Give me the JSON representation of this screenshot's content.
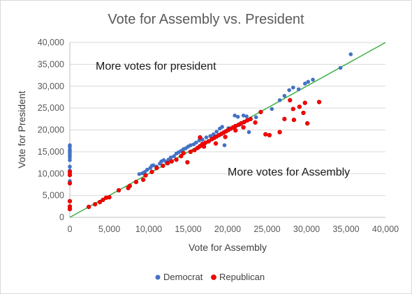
{
  "chart_data": {
    "type": "scatter",
    "title": "Vote for Assembly vs. President",
    "xlabel": "Vote for Assembly",
    "ylabel": "Vote for President",
    "xlim": [
      0,
      40000
    ],
    "ylim": [
      0,
      40000
    ],
    "xticks": [
      "0",
      "5,000",
      "10,000",
      "15,000",
      "20,000",
      "25,000",
      "30,000",
      "35,000",
      "40,000"
    ],
    "yticks": [
      "0",
      "5,000",
      "10,000",
      "15,000",
      "20,000",
      "25,000",
      "30,000",
      "35,000",
      "40,000"
    ],
    "grid": "horizontal",
    "legend_position": "bottom",
    "reference_line": {
      "x": [
        0,
        40000
      ],
      "y": [
        0,
        40000
      ],
      "color": "#3cb043"
    },
    "annotations": [
      {
        "text": "More votes for president"
      },
      {
        "text": "More votes for Assembly"
      }
    ],
    "series": [
      {
        "name": "Democrat",
        "color": "#4472c4",
        "points": [
          [
            0,
            16500
          ],
          [
            0,
            16100
          ],
          [
            0,
            15500
          ],
          [
            0,
            15100
          ],
          [
            0,
            14700
          ],
          [
            0,
            14200
          ],
          [
            0,
            13700
          ],
          [
            0,
            13100
          ],
          [
            0,
            11600
          ],
          [
            0,
            10700
          ],
          [
            0,
            8300
          ],
          [
            8800,
            9900
          ],
          [
            9200,
            10100
          ],
          [
            9500,
            10400
          ],
          [
            9800,
            10900
          ],
          [
            10200,
            11300
          ],
          [
            10400,
            11800
          ],
          [
            10600,
            11900
          ],
          [
            11000,
            11600
          ],
          [
            11400,
            12300
          ],
          [
            11600,
            12800
          ],
          [
            11900,
            13100
          ],
          [
            12200,
            12700
          ],
          [
            12500,
            13200
          ],
          [
            12800,
            13700
          ],
          [
            13200,
            14000
          ],
          [
            13500,
            14600
          ],
          [
            13800,
            14900
          ],
          [
            14100,
            15200
          ],
          [
            14400,
            15600
          ],
          [
            14700,
            15800
          ],
          [
            15000,
            16200
          ],
          [
            15300,
            16500
          ],
          [
            15700,
            16700
          ],
          [
            16000,
            17100
          ],
          [
            16400,
            17600
          ],
          [
            16800,
            17800
          ],
          [
            17300,
            18300
          ],
          [
            17800,
            18600
          ],
          [
            18200,
            19000
          ],
          [
            18600,
            19600
          ],
          [
            19000,
            20300
          ],
          [
            19300,
            20700
          ],
          [
            19600,
            16500
          ],
          [
            20100,
            20400
          ],
          [
            20900,
            23300
          ],
          [
            21300,
            23000
          ],
          [
            21600,
            21300
          ],
          [
            22000,
            23300
          ],
          [
            22400,
            23100
          ],
          [
            22700,
            19500
          ],
          [
            23600,
            22900
          ],
          [
            25600,
            24800
          ],
          [
            26600,
            26800
          ],
          [
            27200,
            27800
          ],
          [
            27800,
            29100
          ],
          [
            28300,
            29700
          ],
          [
            29000,
            29300
          ],
          [
            29800,
            30600
          ],
          [
            30200,
            31000
          ],
          [
            30800,
            31500
          ],
          [
            34300,
            34200
          ],
          [
            35600,
            37300
          ]
        ]
      },
      {
        "name": "Republican",
        "color": "#ff0000",
        "points": [
          [
            0,
            10400
          ],
          [
            0,
            9700
          ],
          [
            0,
            7800
          ],
          [
            0,
            3700
          ],
          [
            0,
            2500
          ],
          [
            0,
            1900
          ],
          [
            2400,
            2400
          ],
          [
            3200,
            3000
          ],
          [
            3800,
            3500
          ],
          [
            4200,
            4000
          ],
          [
            4600,
            4500
          ],
          [
            5000,
            4600
          ],
          [
            6200,
            6200
          ],
          [
            7400,
            6700
          ],
          [
            7600,
            7200
          ],
          [
            8400,
            8100
          ],
          [
            9300,
            8600
          ],
          [
            9600,
            9600
          ],
          [
            10400,
            10400
          ],
          [
            11000,
            11300
          ],
          [
            11800,
            11800
          ],
          [
            12400,
            12400
          ],
          [
            12900,
            12800
          ],
          [
            13500,
            13200
          ],
          [
            14100,
            14000
          ],
          [
            14400,
            14700
          ],
          [
            14900,
            12600
          ],
          [
            15300,
            15000
          ],
          [
            15800,
            15400
          ],
          [
            16200,
            15900
          ],
          [
            16500,
            16300
          ],
          [
            16800,
            16800
          ],
          [
            17200,
            17100
          ],
          [
            17600,
            17400
          ],
          [
            18000,
            17900
          ],
          [
            18300,
            18200
          ],
          [
            18600,
            18500
          ],
          [
            18900,
            18800
          ],
          [
            19200,
            19100
          ],
          [
            19500,
            19400
          ],
          [
            19800,
            19700
          ],
          [
            20100,
            20000
          ],
          [
            20400,
            20300
          ],
          [
            20700,
            20600
          ],
          [
            21000,
            20900
          ],
          [
            21400,
            21200
          ],
          [
            21700,
            21500
          ],
          [
            22100,
            21800
          ],
          [
            22500,
            22200
          ],
          [
            22900,
            22500
          ],
          [
            23500,
            21700
          ],
          [
            24200,
            24100
          ],
          [
            24800,
            19000
          ],
          [
            25300,
            18800
          ],
          [
            26600,
            19500
          ],
          [
            27200,
            22500
          ],
          [
            27900,
            26800
          ],
          [
            28300,
            24800
          ],
          [
            28400,
            22300
          ],
          [
            29100,
            25300
          ],
          [
            29600,
            23900
          ],
          [
            29800,
            26200
          ],
          [
            30100,
            21500
          ],
          [
            31600,
            26400
          ],
          [
            16500,
            18300
          ],
          [
            17000,
            16200
          ],
          [
            18500,
            16900
          ],
          [
            19700,
            18400
          ],
          [
            21000,
            19900
          ],
          [
            22000,
            20600
          ]
        ]
      }
    ]
  }
}
